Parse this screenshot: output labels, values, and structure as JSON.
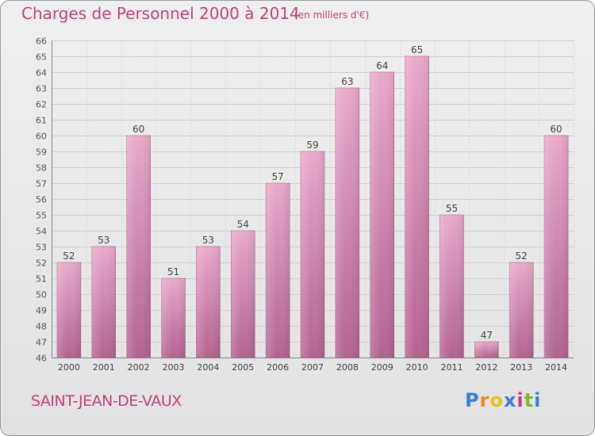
{
  "header": {
    "title": "Charges de Personnel 2000 à 2014",
    "subtitle": "(en milliers d'€)"
  },
  "footer": {
    "location": "SAINT-JEAN-DE-VAUX",
    "logo": {
      "text": "Proxiti",
      "letters": [
        "P",
        "r",
        "o",
        "x",
        "i",
        "t",
        "i"
      ],
      "colors": [
        "#3a7fd5",
        "#f08a1c",
        "#e8c21a",
        "#3a7fd5",
        "#d5368c",
        "#7cb82f",
        "#3a7fd5"
      ]
    }
  },
  "chart_data": {
    "type": "bar",
    "categories": [
      "2000",
      "2001",
      "2002",
      "2003",
      "2004",
      "2005",
      "2006",
      "2007",
      "2008",
      "2009",
      "2010",
      "2011",
      "2012",
      "2013",
      "2014"
    ],
    "values": [
      52,
      53,
      60,
      51,
      53,
      54,
      57,
      59,
      63,
      64,
      65,
      55,
      47,
      52,
      60
    ],
    "xlabel": "",
    "ylabel": "",
    "ylim": [
      46,
      66
    ],
    "yticks": [
      46,
      47,
      48,
      49,
      50,
      51,
      52,
      53,
      54,
      55,
      56,
      57,
      58,
      59,
      60,
      61,
      62,
      63,
      64,
      65,
      66
    ],
    "grid": true,
    "data_labels": true,
    "bar_color": "#d888b4",
    "text_color": "#c0407a"
  }
}
